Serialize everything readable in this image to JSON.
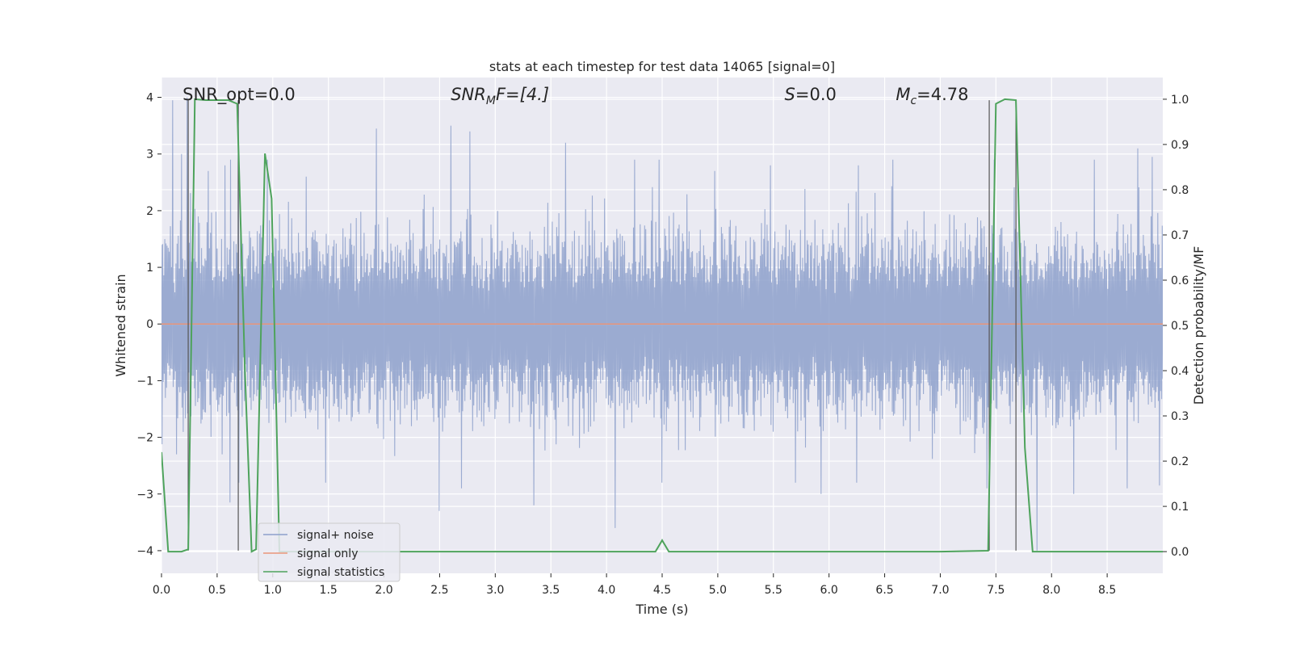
{
  "chart_data": {
    "type": "line",
    "title": "stats at each timestep for test data 14065 [signal=0]",
    "xlabel": "Time (s)",
    "ylabel": "Whitened strain",
    "y2label": "Detection probability/MF",
    "xlim": [
      0,
      9
    ],
    "ylim": [
      -4.4,
      4.35
    ],
    "y2lim": [
      -0.048,
      1.048
    ],
    "x_ticks": [
      0.0,
      0.5,
      1.0,
      1.5,
      2.0,
      2.5,
      3.0,
      3.5,
      4.0,
      4.5,
      5.0,
      5.5,
      6.0,
      6.5,
      7.0,
      7.5,
      8.0,
      8.5
    ],
    "x_tick_labels": [
      "0.0",
      "0.5",
      "1.0",
      "1.5",
      "2.0",
      "2.5",
      "3.0",
      "3.5",
      "4.0",
      "4.5",
      "5.0",
      "5.5",
      "6.0",
      "6.5",
      "7.0",
      "7.5",
      "8.0",
      "8.5"
    ],
    "y_ticks": [
      -4,
      -3,
      -2,
      -1,
      0,
      1,
      2,
      3,
      4
    ],
    "y_tick_labels": [
      "−4",
      "−3",
      "−2",
      "−1",
      "0",
      "1",
      "2",
      "3",
      "4"
    ],
    "y2_ticks": [
      0.0,
      0.1,
      0.2,
      0.3,
      0.4,
      0.5,
      0.6,
      0.7,
      0.8,
      0.9,
      1.0
    ],
    "y2_tick_labels": [
      "0.0",
      "0.1",
      "0.2",
      "0.3",
      "0.4",
      "0.5",
      "0.6",
      "0.7",
      "0.8",
      "0.9",
      "1.0"
    ],
    "grid": true,
    "legend_position": "lower-left",
    "annotations": [
      {
        "prefix": "SNR_opt",
        "sub": "",
        "suffix": "=0.0",
        "x": 0.19
      },
      {
        "prefix": "SNR",
        "sub": "M",
        "suffix": "F=[4.]",
        "x": 2.6
      },
      {
        "prefix": "S",
        "sub": "",
        "suffix": "=0.0",
        "x": 5.6
      },
      {
        "prefix": "M",
        "sub": "c",
        "suffix": "=4.78",
        "x": 6.6
      }
    ],
    "vertical_markers": [
      0.24,
      0.69,
      7.44,
      7.68
    ],
    "series": [
      {
        "name": "signal+ noise",
        "axis": "left",
        "color": "#8da0cb",
        "kind": "noise",
        "envelope": [
          {
            "x": 0.1,
            "y": 3.95
          },
          {
            "x": 0.18,
            "y": 3.0
          },
          {
            "x": 0.23,
            "y": 4.0
          },
          {
            "x": 0.42,
            "y": 2.7
          },
          {
            "x": 0.57,
            "y": 2.8
          },
          {
            "x": 0.62,
            "y": 2.9
          },
          {
            "x": 0.69,
            "y": 3.95
          },
          {
            "x": 0.95,
            "y": 2.9
          },
          {
            "x": 1.3,
            "y": 2.6
          },
          {
            "x": 1.93,
            "y": 3.45
          },
          {
            "x": 2.6,
            "y": 3.5
          },
          {
            "x": 2.77,
            "y": 3.4
          },
          {
            "x": 3.63,
            "y": 3.2
          },
          {
            "x": 4.25,
            "y": 2.9
          },
          {
            "x": 4.47,
            "y": 2.9
          },
          {
            "x": 4.97,
            "y": 2.7
          },
          {
            "x": 5.47,
            "y": 2.8
          },
          {
            "x": 6.26,
            "y": 2.8
          },
          {
            "x": 6.57,
            "y": 2.9
          },
          {
            "x": 7.48,
            "y": 2.9
          },
          {
            "x": 8.38,
            "y": 2.9
          },
          {
            "x": 8.77,
            "y": 3.1
          },
          {
            "x": 8.9,
            "y": 2.95
          }
        ],
        "troughs": [
          {
            "x": 0.14,
            "y": -2.3
          },
          {
            "x": 0.55,
            "y": -2.3
          },
          {
            "x": 0.62,
            "y": -3.15
          },
          {
            "x": 0.7,
            "y": -2.8
          },
          {
            "x": 1.48,
            "y": -2.8
          },
          {
            "x": 2.5,
            "y": -3.3
          },
          {
            "x": 2.7,
            "y": -2.9
          },
          {
            "x": 3.35,
            "y": -3.2
          },
          {
            "x": 4.08,
            "y": -3.6
          },
          {
            "x": 4.5,
            "y": -2.8
          },
          {
            "x": 5.7,
            "y": -2.8
          },
          {
            "x": 5.93,
            "y": -3.0
          },
          {
            "x": 6.25,
            "y": -2.8
          },
          {
            "x": 7.42,
            "y": -2.9
          },
          {
            "x": 7.87,
            "y": -4.0
          },
          {
            "x": 8.2,
            "y": -3.0
          },
          {
            "x": 8.68,
            "y": -2.9
          },
          {
            "x": 8.97,
            "y": -2.85
          }
        ]
      },
      {
        "name": "signal only",
        "axis": "left",
        "color": "#e9967a",
        "x": [
          0.0,
          9.0
        ],
        "y": [
          0.0,
          0.0
        ]
      },
      {
        "name": "signal statistics",
        "axis": "right",
        "color": "#4ea35c",
        "x": [
          0.0,
          0.06,
          0.18,
          0.24,
          0.3,
          0.4,
          0.6,
          0.68,
          0.75,
          0.81,
          0.85,
          0.93,
          0.99,
          1.06,
          1.2,
          1.5,
          2.0,
          3.0,
          4.0,
          4.44,
          4.5,
          4.56,
          5.0,
          6.0,
          7.0,
          7.43,
          7.5,
          7.58,
          7.68,
          7.76,
          7.83,
          8.5,
          9.0
        ],
        "y": [
          0.22,
          0.0,
          0.0,
          0.005,
          1.0,
          0.998,
          0.998,
          0.99,
          0.4,
          0.0,
          0.005,
          0.88,
          0.78,
          0.0,
          0.0,
          0.0,
          0.0,
          0.0,
          0.0,
          0.0,
          0.025,
          0.0,
          0.0,
          0.0,
          0.0,
          0.002,
          0.99,
          1.0,
          0.998,
          0.23,
          0.0,
          0.0,
          0.0
        ]
      }
    ]
  }
}
